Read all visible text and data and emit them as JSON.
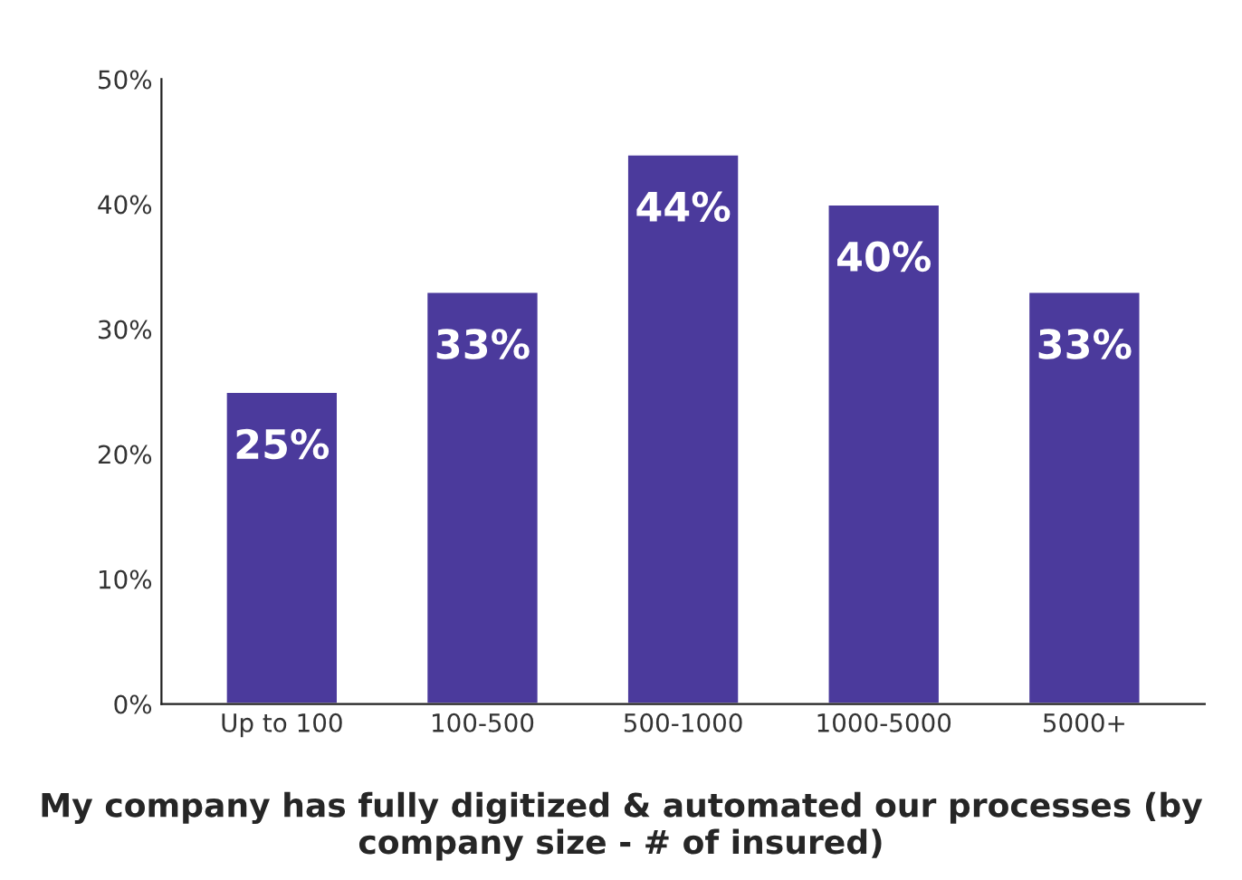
{
  "chart_data": {
    "type": "bar",
    "title": "My company has fully digitized & automated our processes (by company size - # of insured)",
    "categories": [
      "Up to 100",
      "100-500",
      "500-1000",
      "1000-5000",
      "5000+"
    ],
    "values": [
      25,
      33,
      44,
      40,
      33
    ],
    "value_labels": [
      "25%",
      "33%",
      "44%",
      "40%",
      "33%"
    ],
    "color": "#4b3a9c",
    "ylim": [
      0,
      50
    ],
    "yticks": [
      {
        "value": 0,
        "label": "0%"
      },
      {
        "value": 10,
        "label": "10%"
      },
      {
        "value": 20,
        "label": "20%"
      },
      {
        "value": 30,
        "label": "30%"
      },
      {
        "value": 40,
        "label": "40%"
      },
      {
        "value": 50,
        "label": "50%"
      }
    ],
    "grid": false
  }
}
